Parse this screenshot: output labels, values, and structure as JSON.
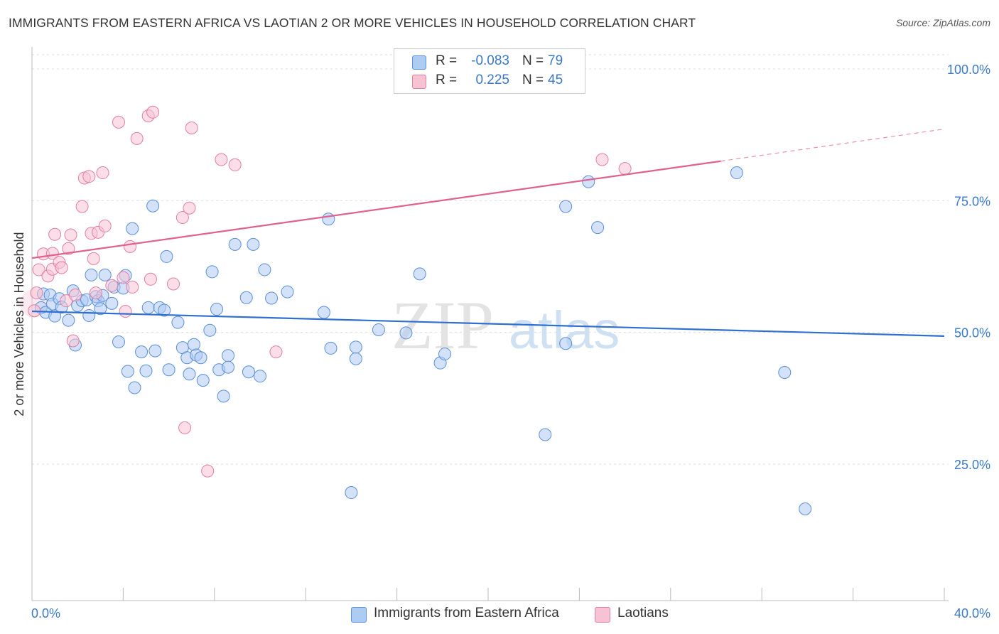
{
  "title": "IMMIGRANTS FROM EASTERN AFRICA VS LAOTIAN 2 OR MORE VEHICLES IN HOUSEHOLD CORRELATION CHART",
  "source": "Source: ZipAtlas.com",
  "watermark": {
    "zip": "ZIP",
    "atlas": "atlas"
  },
  "legend": {
    "rows": [
      {
        "r_label": "R =",
        "r_value": "-0.083",
        "n_label": "N =",
        "n_value": "79",
        "color": "#aecbf2",
        "border": "#5b8fd6"
      },
      {
        "r_label": "R =",
        "r_value": "0.225",
        "n_label": "N =",
        "n_value": "45",
        "color": "#f7c3d3",
        "border": "#e17fa0"
      }
    ]
  },
  "bottom_legend": [
    {
      "label": "Immigrants from Eastern Africa",
      "color": "#aecbf2",
      "border": "#5b8fd6"
    },
    {
      "label": "Laotians",
      "color": "#f7c3d3",
      "border": "#e17fa0"
    }
  ],
  "chart_data": {
    "type": "scatter",
    "xlabel": "",
    "ylabel": "2 or more Vehicles in Household",
    "xlim": [
      0,
      40
    ],
    "ylim": [
      0,
      105
    ],
    "x_tick_labels": {
      "min": "0.0%",
      "max": "40.0%"
    },
    "y_ticks": [
      {
        "value": 100,
        "label": "100.0%"
      },
      {
        "value": 75,
        "label": "75.0%"
      },
      {
        "value": 50,
        "label": "50.0%"
      },
      {
        "value": 25,
        "label": "25.0%"
      }
    ],
    "grid": true,
    "series": [
      {
        "name": "Immigrants from Eastern Africa",
        "color": "#5b8fd6",
        "fill": "rgba(174,203,242,0.55)",
        "trend": {
          "x0": 0,
          "y0": 54.0,
          "x1": 40,
          "y1": 49.3,
          "color": "#2e6fd0"
        },
        "points": [
          [
            0.4,
            54.7
          ],
          [
            0.5,
            57.3
          ],
          [
            0.6,
            53.8
          ],
          [
            0.8,
            57.1
          ],
          [
            0.9,
            55.4
          ],
          [
            1.0,
            53.1
          ],
          [
            1.2,
            56.4
          ],
          [
            1.3,
            54.8
          ],
          [
            1.6,
            52.3
          ],
          [
            1.8,
            57.9
          ],
          [
            1.9,
            47.6
          ],
          [
            2.0,
            55.1
          ],
          [
            2.2,
            56.0
          ],
          [
            2.4,
            56.2
          ],
          [
            2.5,
            53.2
          ],
          [
            2.6,
            60.9
          ],
          [
            2.8,
            56.8
          ],
          [
            2.9,
            56.0
          ],
          [
            3.0,
            54.5
          ],
          [
            3.1,
            57.0
          ],
          [
            3.2,
            60.9
          ],
          [
            3.5,
            55.5
          ],
          [
            3.6,
            58.6
          ],
          [
            3.8,
            48.2
          ],
          [
            4.0,
            58.4
          ],
          [
            4.1,
            60.8
          ],
          [
            4.2,
            42.6
          ],
          [
            4.4,
            69.7
          ],
          [
            4.5,
            39.5
          ],
          [
            4.8,
            46.3
          ],
          [
            5.0,
            42.7
          ],
          [
            5.1,
            54.7
          ],
          [
            5.3,
            74.0
          ],
          [
            5.4,
            46.5
          ],
          [
            5.6,
            54.7
          ],
          [
            5.8,
            54.2
          ],
          [
            5.9,
            64.4
          ],
          [
            6.0,
            42.9
          ],
          [
            6.4,
            51.9
          ],
          [
            6.6,
            47.1
          ],
          [
            6.8,
            45.2
          ],
          [
            6.9,
            42.1
          ],
          [
            7.1,
            47.7
          ],
          [
            7.2,
            45.7
          ],
          [
            7.4,
            45.2
          ],
          [
            7.5,
            40.9
          ],
          [
            7.8,
            50.4
          ],
          [
            7.9,
            61.5
          ],
          [
            8.1,
            54.4
          ],
          [
            8.2,
            42.9
          ],
          [
            8.4,
            37.9
          ],
          [
            8.6,
            45.6
          ],
          [
            8.6,
            43.4
          ],
          [
            8.9,
            66.7
          ],
          [
            9.4,
            56.6
          ],
          [
            9.5,
            42.5
          ],
          [
            9.7,
            66.7
          ],
          [
            10.0,
            41.7
          ],
          [
            10.2,
            61.9
          ],
          [
            10.5,
            56.5
          ],
          [
            11.2,
            57.7
          ],
          [
            12.8,
            53.8
          ],
          [
            13.0,
            71.5
          ],
          [
            13.1,
            47.0
          ],
          [
            14.0,
            19.6
          ],
          [
            14.2,
            45.0
          ],
          [
            14.2,
            47.2
          ],
          [
            15.2,
            50.5
          ],
          [
            16.4,
            49.9
          ],
          [
            17.0,
            61.1
          ],
          [
            17.9,
            44.2
          ],
          [
            18.1,
            45.9
          ],
          [
            22.5,
            30.6
          ],
          [
            23.4,
            47.9
          ],
          [
            23.4,
            73.9
          ],
          [
            24.4,
            78.6
          ],
          [
            24.8,
            69.9
          ],
          [
            30.9,
            80.3
          ],
          [
            33.0,
            42.4
          ],
          [
            33.9,
            16.5
          ]
        ]
      },
      {
        "name": "Laotians",
        "color": "#e17fa0",
        "fill": "rgba(247,195,211,0.55)",
        "trend": {
          "x0": 0,
          "y0": 64.1,
          "x1": 30.2,
          "y1": 82.5,
          "color": "#e0628c",
          "dash_x1": 40,
          "dash_y1": 88.6
        },
        "points": [
          [
            0.1,
            54.1
          ],
          [
            0.3,
            61.9
          ],
          [
            0.5,
            64.9
          ],
          [
            0.7,
            60.7
          ],
          [
            0.9,
            62.0
          ],
          [
            0.9,
            65.0
          ],
          [
            1.0,
            68.6
          ],
          [
            1.2,
            63.3
          ],
          [
            1.3,
            62.3
          ],
          [
            1.5,
            56.0
          ],
          [
            1.6,
            65.9
          ],
          [
            1.7,
            68.5
          ],
          [
            1.8,
            48.4
          ],
          [
            1.9,
            57.1
          ],
          [
            2.2,
            73.9
          ],
          [
            2.3,
            79.3
          ],
          [
            2.5,
            79.6
          ],
          [
            2.6,
            68.8
          ],
          [
            2.7,
            64.0
          ],
          [
            2.8,
            57.5
          ],
          [
            2.9,
            69.0
          ],
          [
            3.1,
            80.3
          ],
          [
            3.2,
            70.2
          ],
          [
            3.5,
            58.9
          ],
          [
            3.8,
            89.9
          ],
          [
            4.0,
            60.4
          ],
          [
            4.1,
            54.0
          ],
          [
            4.3,
            66.3
          ],
          [
            4.4,
            58.6
          ],
          [
            4.6,
            86.8
          ],
          [
            5.1,
            91.1
          ],
          [
            5.2,
            60.1
          ],
          [
            5.3,
            91.8
          ],
          [
            6.2,
            59.2
          ],
          [
            6.6,
            71.8
          ],
          [
            6.7,
            31.9
          ],
          [
            6.9,
            73.6
          ],
          [
            7.0,
            88.8
          ],
          [
            7.7,
            23.7
          ],
          [
            8.3,
            82.8
          ],
          [
            8.9,
            81.8
          ],
          [
            10.7,
            46.3
          ],
          [
            25.0,
            82.8
          ],
          [
            26.0,
            81.1
          ],
          [
            0.2,
            57.5
          ]
        ]
      }
    ]
  }
}
